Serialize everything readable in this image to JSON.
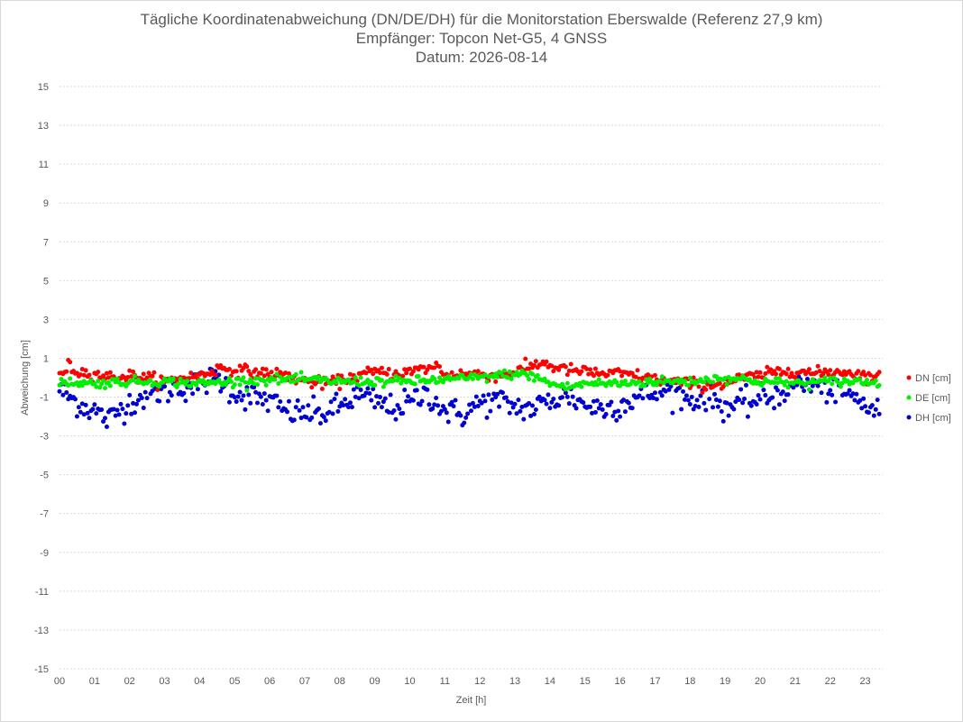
{
  "chart_data": {
    "type": "scatter",
    "title": "Tägliche Koordinatenabweichung (DN/DE/DH) für die Monitorstation Eberswalde (Referenz 27,9 km)",
    "subtitle": "Empfänger: Topcon Net-G5, 4 GNSS",
    "date_line": "Datum: 2026-08-14",
    "xlabel": "Zeit [h]",
    "ylabel": "Abweichung [cm]",
    "xlim": [
      0,
      23.5
    ],
    "ylim": [
      -15,
      15
    ],
    "x_ticks": [
      "00",
      "01",
      "02",
      "03",
      "04",
      "05",
      "06",
      "07",
      "08",
      "09",
      "10",
      "11",
      "12",
      "13",
      "14",
      "15",
      "16",
      "17",
      "18",
      "19",
      "20",
      "21",
      "22",
      "23"
    ],
    "y_ticks": [
      15,
      13,
      11,
      9,
      7,
      5,
      3,
      1,
      -1,
      -3,
      -5,
      -7,
      -9,
      -11,
      -13,
      -15
    ],
    "grid": "horizontal-dotted",
    "legend_position": "right",
    "sample_interval_h": 0.05,
    "series": [
      {
        "name": "DN [cm]",
        "color": "#ff0000",
        "anchors_x": [
          0,
          0.25,
          0.5,
          1,
          1.5,
          2,
          2.5,
          3,
          3.5,
          4,
          4.3,
          4.6,
          5,
          5.5,
          6,
          6.5,
          7,
          7.5,
          8,
          8.5,
          9,
          9.5,
          10,
          10.5,
          10.8,
          11,
          11.5,
          12,
          12.5,
          13,
          13.5,
          13.8,
          14,
          14.5,
          15,
          15.5,
          16,
          16.5,
          17,
          17.5,
          18,
          18.5,
          19,
          19.5,
          20,
          20.5,
          21,
          21.5,
          22,
          22.5,
          23,
          23.4
        ],
        "anchors_y": [
          0.1,
          0.6,
          0.3,
          0.2,
          0.0,
          0.1,
          0.0,
          -0.2,
          0.0,
          0.1,
          0.3,
          0.5,
          0.4,
          0.3,
          0.2,
          0.1,
          -0.2,
          -0.3,
          -0.2,
          0.1,
          0.3,
          0.2,
          0.3,
          0.5,
          0.6,
          0.1,
          0.2,
          0.2,
          0.1,
          0.3,
          0.6,
          0.8,
          0.6,
          0.4,
          0.3,
          0.2,
          0.2,
          0.1,
          -0.1,
          -0.2,
          -0.3,
          -0.4,
          -0.3,
          0.0,
          0.1,
          0.3,
          0.4,
          0.2,
          0.3,
          0.3,
          0.1,
          0.0
        ],
        "noise": 0.15,
        "values_hourly": [
          0.1,
          0.3,
          0.1,
          -0.2,
          0.1,
          0.4,
          0.2,
          -0.2,
          -0.2,
          0.3,
          0.3,
          0.1,
          0.2,
          0.3,
          0.6,
          0.3,
          0.2,
          -0.1,
          -0.3,
          -0.3,
          0.1,
          0.4,
          0.3,
          0.1
        ]
      },
      {
        "name": "DE [cm]",
        "color": "#00ee00",
        "anchors_x": [
          0,
          1,
          2,
          3,
          4,
          5,
          6,
          7,
          8,
          9,
          10,
          11,
          12,
          13,
          13.5,
          14,
          14.5,
          15,
          16,
          17,
          18,
          19,
          20,
          21,
          22,
          23,
          23.4
        ],
        "anchors_y": [
          -0.2,
          -0.3,
          -0.2,
          -0.2,
          -0.3,
          -0.2,
          -0.1,
          -0.1,
          -0.2,
          -0.2,
          -0.2,
          -0.1,
          0.0,
          0.2,
          0.1,
          -0.3,
          -0.5,
          -0.3,
          -0.3,
          -0.2,
          -0.2,
          0.0,
          -0.2,
          -0.3,
          -0.2,
          -0.2,
          -0.3
        ],
        "noise": 0.12,
        "values_hourly": [
          -0.2,
          -0.3,
          -0.2,
          -0.2,
          -0.3,
          -0.2,
          -0.1,
          -0.1,
          -0.2,
          -0.2,
          -0.2,
          -0.1,
          0.0,
          0.2,
          -0.3,
          -0.3,
          -0.3,
          -0.2,
          -0.2,
          0.0,
          -0.2,
          -0.3,
          -0.2,
          -0.2
        ]
      },
      {
        "name": "DH [cm]",
        "color": "#0000d0",
        "anchors_x": [
          0,
          0.2,
          0.6,
          1,
          1.4,
          1.8,
          2.2,
          2.7,
          3.2,
          3.6,
          4,
          4.5,
          5,
          5.5,
          6,
          6.5,
          7,
          7.5,
          8,
          8.5,
          9,
          9.5,
          10,
          10.5,
          11,
          11.5,
          12,
          12.5,
          13,
          13.5,
          14,
          14.5,
          15,
          15.5,
          16,
          16.5,
          17,
          17.5,
          18,
          18.5,
          19,
          19.5,
          20,
          20.5,
          21,
          21.5,
          22,
          22.5,
          23,
          23.4
        ],
        "anchors_y": [
          -0.6,
          -0.9,
          -1.4,
          -1.7,
          -2.2,
          -1.5,
          -1.1,
          -0.8,
          -0.6,
          -0.5,
          -0.3,
          0.0,
          -0.8,
          -1.0,
          -1.2,
          -1.8,
          -1.8,
          -1.9,
          -1.5,
          -0.9,
          -1.2,
          -1.6,
          -1.3,
          -0.8,
          -1.7,
          -1.9,
          -1.3,
          -1.2,
          -1.5,
          -1.6,
          -1.2,
          -0.9,
          -1.4,
          -1.6,
          -1.4,
          -1.0,
          -0.8,
          -0.6,
          -1.2,
          -0.9,
          -1.5,
          -1.4,
          -1.1,
          -0.9,
          -0.3,
          -0.4,
          -0.6,
          -0.9,
          -1.4,
          -1.8
        ],
        "noise": 0.35,
        "values_hourly": [
          -0.6,
          -1.7,
          -1.3,
          -0.6,
          -0.3,
          -0.8,
          -1.2,
          -1.8,
          -1.5,
          -1.2,
          -1.3,
          -1.7,
          -1.3,
          -1.5,
          -1.2,
          -1.4,
          -1.4,
          -0.8,
          -1.2,
          -1.5,
          -1.1,
          -0.3,
          -0.6,
          -1.4
        ]
      }
    ]
  }
}
